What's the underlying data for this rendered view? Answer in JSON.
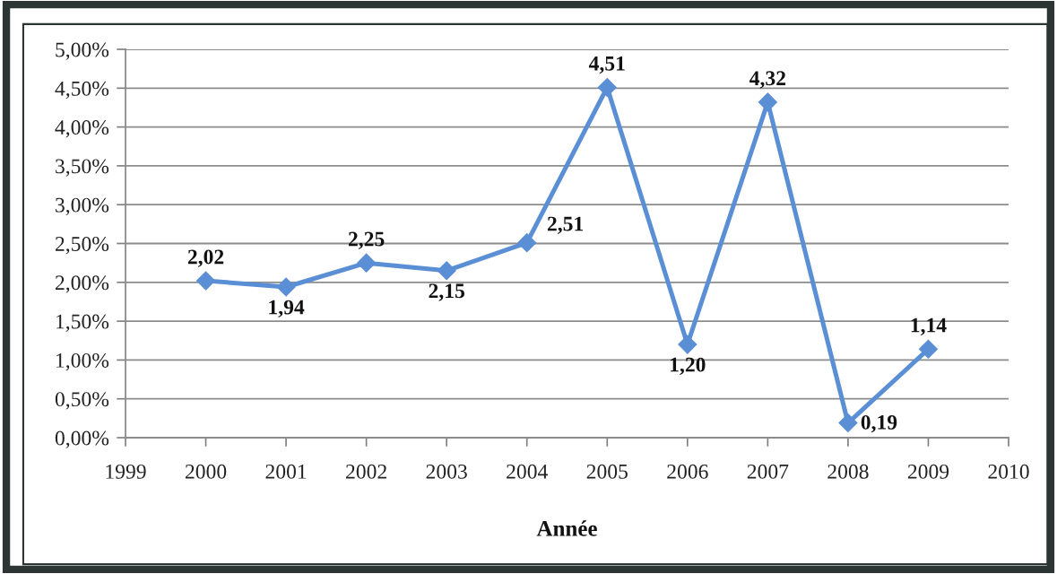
{
  "chart_data": {
    "type": "line",
    "xlabel": "Année",
    "x": [
      2000,
      2001,
      2002,
      2003,
      2004,
      2005,
      2006,
      2007,
      2008,
      2009
    ],
    "series": [
      {
        "color": "#5a8fd6",
        "values": [
          2.02,
          1.94,
          2.25,
          2.15,
          2.51,
          4.51,
          1.2,
          4.32,
          0.19,
          1.14
        ],
        "value_labels": [
          "2,02",
          "1,94",
          "2,25",
          "2,15",
          "2,51",
          "4,51",
          "1,20",
          "4,32",
          "0,19",
          "1,14"
        ]
      }
    ],
    "xlim": [
      1999,
      2010
    ],
    "ylim": [
      0,
      5
    ],
    "xticks": [
      1999,
      2000,
      2001,
      2002,
      2003,
      2004,
      2005,
      2006,
      2007,
      2008,
      2009,
      2010
    ],
    "yticks": [
      {
        "value": 0,
        "label": "0,00%"
      },
      {
        "value": 0.5,
        "label": "0,50%"
      },
      {
        "value": 1,
        "label": "1,00%"
      },
      {
        "value": 1.5,
        "label": "1,50%"
      },
      {
        "value": 2,
        "label": "2,00%"
      },
      {
        "value": 2.5,
        "label": "2,50%"
      },
      {
        "value": 3,
        "label": "3,00%"
      },
      {
        "value": 3.5,
        "label": "3,50%"
      },
      {
        "value": 4,
        "label": "4,00%"
      },
      {
        "value": 4.5,
        "label": "4,50%"
      },
      {
        "value": 5,
        "label": "5,00%"
      }
    ],
    "grid": "y",
    "marker": "diamond",
    "line_style": "solid"
  }
}
